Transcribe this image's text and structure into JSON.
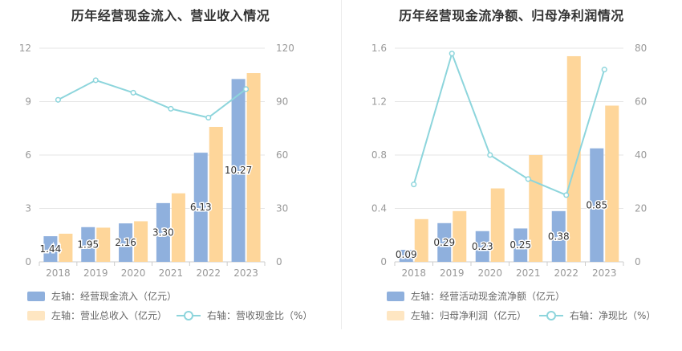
{
  "charts": [
    {
      "title": "历年经营现金流入、营业收入情况",
      "legend": {
        "bar1": "左轴：经营现金流入（亿元）",
        "bar2": "左轴：营业总收入（亿元）",
        "line": "右轴：营收现金比（%）"
      }
    },
    {
      "title": "历年经营现金流净额、归母净利润情况",
      "legend": {
        "bar1": "左轴：经营活动现金流净额（亿元）",
        "bar2": "左轴：归母净利润（亿元）",
        "line": "右轴：净现比（%）"
      }
    }
  ],
  "colors": {
    "bar1": "#8fb0dd",
    "bar2": "#fed69a",
    "line": "#8dd5dc",
    "axis_text": "#999999",
    "grid": "#e6e6e6"
  },
  "chart_data": [
    {
      "type": "bar",
      "title": "历年经营现金流入、营业收入情况",
      "categories": [
        "2018",
        "2019",
        "2020",
        "2021",
        "2022",
        "2023"
      ],
      "series": [
        {
          "name": "左轴：经营现金流入（亿元）",
          "axis": "left",
          "type": "bar",
          "values": [
            1.44,
            1.95,
            2.16,
            3.3,
            6.13,
            10.27
          ],
          "labels": [
            "1.44",
            "1.95",
            "2.16",
            "3.30",
            "6.13",
            "10.27"
          ]
        },
        {
          "name": "左轴：营业总收入（亿元）",
          "axis": "left",
          "type": "bar",
          "values": [
            1.58,
            1.92,
            2.28,
            3.85,
            7.58,
            10.6
          ]
        },
        {
          "name": "右轴：营收现金比（%）",
          "axis": "right",
          "type": "line",
          "values": [
            91,
            102,
            95,
            86,
            81,
            97
          ]
        }
      ],
      "left_ticks": [
        "0",
        "3",
        "6",
        "9",
        "12"
      ],
      "right_ticks": [
        "0",
        "30",
        "60",
        "90",
        "120"
      ],
      "ylim_left": [
        0,
        12
      ],
      "ylim_right": [
        0,
        120
      ],
      "grid": true,
      "legend_position": "bottom-left"
    },
    {
      "type": "bar",
      "title": "历年经营现金流净额、归母净利润情况",
      "categories": [
        "2018",
        "2019",
        "2020",
        "2021",
        "2022",
        "2023"
      ],
      "series": [
        {
          "name": "左轴：经营活动现金流净额（亿元）",
          "axis": "left",
          "type": "bar",
          "values": [
            0.09,
            0.29,
            0.23,
            0.25,
            0.38,
            0.85
          ],
          "labels": [
            "0.09",
            "0.29",
            "0.23",
            "0.25",
            "0.38",
            "0.85"
          ]
        },
        {
          "name": "左轴：归母净利润（亿元）",
          "axis": "left",
          "type": "bar",
          "values": [
            0.32,
            0.38,
            0.55,
            0.8,
            1.54,
            1.17
          ]
        },
        {
          "name": "右轴：净现比（%）",
          "axis": "right",
          "type": "line",
          "values": [
            29,
            78,
            40,
            31,
            25,
            72
          ]
        }
      ],
      "left_ticks": [
        "0",
        "0.4",
        "0.8",
        "1.2",
        "1.6"
      ],
      "right_ticks": [
        "0",
        "20",
        "40",
        "60",
        "80"
      ],
      "ylim_left": [
        0,
        1.6
      ],
      "ylim_right": [
        0,
        80
      ],
      "grid": true,
      "legend_position": "bottom-left"
    }
  ]
}
